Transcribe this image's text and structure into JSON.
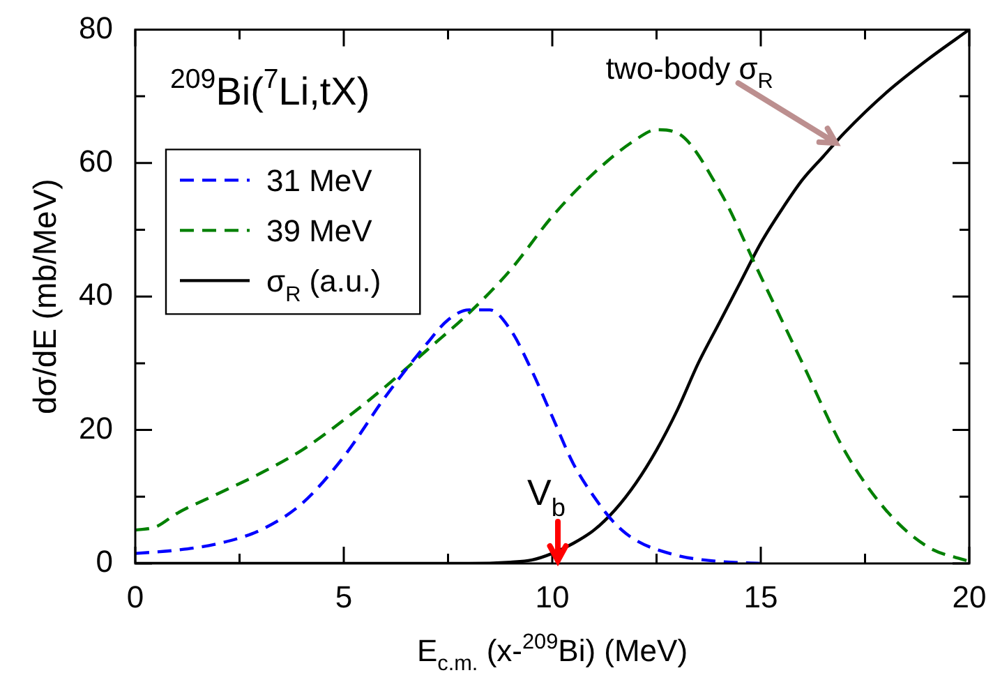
{
  "chart_data": {
    "type": "line",
    "xlabel": "E$_{c.m.}$ (x-$^{209}$Bi) (MeV)",
    "ylabel": "dσ/dE (mb/MeV)",
    "xlim": [
      0,
      20
    ],
    "xticks": [
      0,
      {
        "value": 2.5,
        "label": null
      },
      5,
      {
        "value": 7.5,
        "label": null
      },
      10,
      {
        "value": 12.5,
        "label": null
      },
      15,
      {
        "value": 17.5,
        "label": null
      },
      20
    ],
    "ylim": [
      0,
      80
    ],
    "yticks": [
      0,
      {
        "value": 10,
        "label": null
      },
      20,
      {
        "value": 30,
        "label": null
      },
      40,
      {
        "value": 50,
        "label": null
      },
      60,
      {
        "value": 70,
        "label": null
      },
      80
    ],
    "grid": false,
    "legend": "top left",
    "marker": "none",
    "annotations": [
      "$^{209}$Bi($^{7}$Li,tX)",
      {
        "text": "two-body σ$_{R}$",
        "x": 16.8,
        "y": 63
      },
      "V$_{b}$"
    ],
    "series": [
      {
        "name": "31 MeV",
        "color": "#0000ff",
        "line_style": "dashed",
        "x": [
          0,
          1,
          2,
          3,
          4,
          5,
          6,
          7,
          7.5,
          8,
          8.5,
          9,
          9.5,
          10,
          10.5,
          11,
          11.5,
          12,
          13,
          14,
          15
        ],
        "values": [
          1.5,
          2,
          3,
          5,
          9,
          16,
          25,
          33,
          36.5,
          38,
          38,
          35,
          29,
          22,
          15,
          10,
          6,
          3.5,
          1.2,
          0.3,
          0
        ]
      },
      {
        "name": "39 MeV",
        "color": "#008000",
        "line_style": "dashed",
        "x": [
          0,
          0.5,
          1,
          2,
          3,
          4,
          5,
          6,
          7,
          8,
          9,
          10,
          11,
          12,
          12.5,
          13,
          14,
          15,
          16,
          17,
          18,
          19,
          20
        ],
        "values": [
          5,
          5.5,
          7.5,
          10.5,
          13.5,
          17,
          21.5,
          26.5,
          32,
          37.5,
          44,
          52,
          58.5,
          63.5,
          65,
          64.5,
          56,
          43,
          30,
          17,
          8,
          2.5,
          0.3
        ]
      },
      {
        "name": "σ$_{R}$ (a.u.)",
        "color": "#000000",
        "line_style": "solid",
        "x": [
          0,
          8,
          9,
          9.5,
          10,
          10.5,
          11,
          11.5,
          12,
          12.5,
          13,
          13.5,
          14,
          14.5,
          15,
          15.5,
          16,
          16.5,
          17,
          18,
          19,
          20
        ],
        "values": [
          0,
          0,
          0.2,
          0.5,
          1.5,
          3,
          5,
          8,
          12,
          17,
          23,
          30,
          36,
          42,
          48,
          53,
          57.5,
          61,
          64.5,
          70.5,
          75.5,
          80
        ]
      }
    ]
  }
}
